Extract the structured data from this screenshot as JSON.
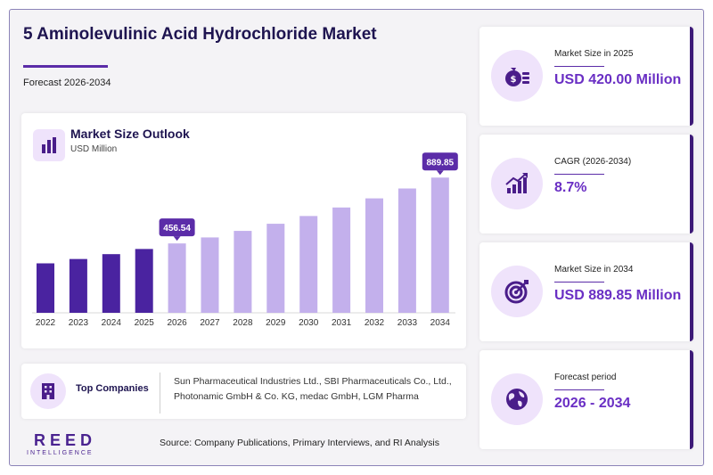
{
  "header": {
    "title": "5 Aminolevulinic Acid Hydrochloride Market",
    "subtitle": "Forecast 2026-2034"
  },
  "chart_data": {
    "type": "bar",
    "title": "Market Size Outlook",
    "ylabel": "USD Million",
    "categories": [
      "2022",
      "2023",
      "2024",
      "2025",
      "2026",
      "2027",
      "2028",
      "2029",
      "2030",
      "2031",
      "2032",
      "2033",
      "2034"
    ],
    "values": [
      325.5,
      354,
      386,
      420.0,
      456.54,
      496,
      539,
      586,
      637,
      693,
      753,
      818,
      889.85
    ],
    "forecast_from_index": 4,
    "annotations": [
      {
        "category": "2026",
        "label": "456.54"
      },
      {
        "category": "2034",
        "label": "889.85"
      }
    ],
    "colors": {
      "historical": "#4a23a0",
      "forecast": "#c3b0ec",
      "annotation": "#5b2ca8"
    },
    "ylim": [
      0,
      950
    ],
    "grid": false
  },
  "companies": {
    "label": "Top Companies",
    "list": "Sun Pharmaceutical Industries Ltd., SBI Pharmaceuticals Co., Ltd., Photonamic GmbH & Co. KG, medac GmbH, LGM Pharma"
  },
  "logo": {
    "main": "REED",
    "sub": "INTELLIGENCE"
  },
  "source": "Source: Company Publications, Primary Interviews, and RI Analysis",
  "stats": [
    {
      "label": "Market Size in 2025",
      "value": "USD 420.00 Million",
      "icon": "money-bag-icon"
    },
    {
      "label": "CAGR (2026-2034)",
      "value": "8.7%",
      "icon": "growth-chart-icon"
    },
    {
      "label": "Market Size in 2034",
      "value": "USD 889.85 Million",
      "icon": "target-icon"
    },
    {
      "label": "Forecast period",
      "value": "2026 - 2034",
      "icon": "globe-icon"
    }
  ]
}
